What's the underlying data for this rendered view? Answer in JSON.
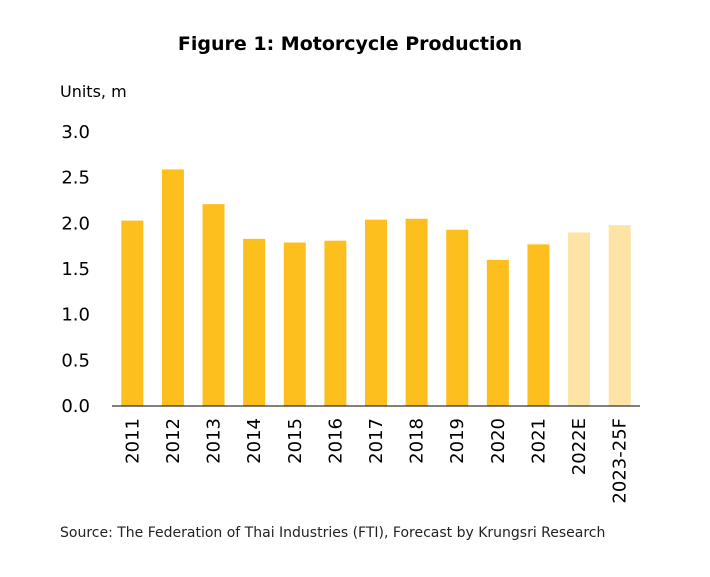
{
  "title": "Figure 1: Motorcycle Production",
  "unit_label": "Units, m",
  "source": "Source: The Federation of Thai Industries (FTI), Forecast by Krungsri Research",
  "colors": {
    "actual": "#FDBF1E",
    "forecast": "#FDE4A5",
    "axis": "#000000"
  },
  "chart_data": {
    "type": "bar",
    "title": "Figure 1: Motorcycle Production",
    "ylabel": "Units, m",
    "xlabel": "",
    "categories": [
      "2011",
      "2012",
      "2013",
      "2014",
      "2015",
      "2016",
      "2017",
      "2018",
      "2019",
      "2020",
      "2021",
      "2022E",
      "2023-25F"
    ],
    "values": [
      2.03,
      2.59,
      2.21,
      1.83,
      1.79,
      1.81,
      2.04,
      2.05,
      1.93,
      1.6,
      1.77,
      1.9,
      1.98
    ],
    "forecast": [
      false,
      false,
      false,
      false,
      false,
      false,
      false,
      false,
      false,
      false,
      false,
      true,
      true
    ],
    "ylim": [
      0,
      3.0
    ],
    "yticks": [
      "0.0",
      "0.5",
      "1.0",
      "1.5",
      "2.0",
      "2.5",
      "3.0"
    ],
    "grid": false,
    "legend": "none"
  }
}
